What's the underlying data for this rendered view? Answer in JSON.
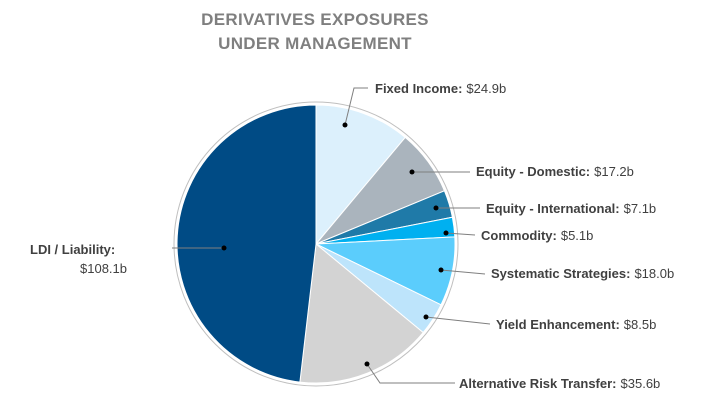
{
  "chart_data": {
    "type": "pie",
    "title_lines": [
      "DERIVATIVES EXPOSURES",
      "UNDER MANAGEMENT"
    ],
    "unit": "$b",
    "slices": [
      {
        "name": "Fixed Income",
        "value": 24.9,
        "value_label": "$24.9b",
        "color": "#dcf0fc"
      },
      {
        "name": "Equity - Domestic",
        "value": 17.2,
        "value_label": "$17.2b",
        "color": "#aab4bd"
      },
      {
        "name": "Equity - International",
        "value": 7.1,
        "value_label": "$7.1b",
        "color": "#1f7aa8"
      },
      {
        "name": "Commodity",
        "value": 5.1,
        "value_label": "$5.1b",
        "color": "#00b0f0"
      },
      {
        "name": "Systematic Strategies",
        "value": 18.0,
        "value_label": "$18.0b",
        "color": "#5bcdfc"
      },
      {
        "name": "Yield Enhancement",
        "value": 8.5,
        "value_label": "$8.5b",
        "color": "#bde4fb"
      },
      {
        "name": "Alternative Risk Transfer",
        "value": 35.6,
        "value_label": "$35.6b",
        "color": "#d3d3d3"
      },
      {
        "name": "LDI / Liability",
        "value": 108.1,
        "value_label": "$108.1b",
        "color": "#004b85"
      }
    ]
  }
}
